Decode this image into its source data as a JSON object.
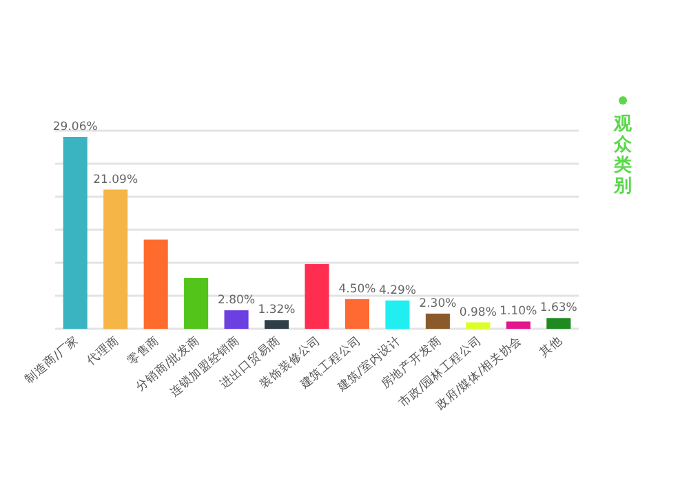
{
  "chart_data": {
    "type": "bar",
    "categories": [
      "制造商/厂家",
      "代理商",
      "零售商",
      "分销商/批发商",
      "连锁加盟经销商",
      "进出口贸易商",
      "装饰装修公司",
      "建筑工程公司",
      "建筑/室内设计",
      "房地产开发商",
      "市政/园林工程公司",
      "政府/媒体/相关协会",
      "其他"
    ],
    "series": [
      {
        "name": "观众类别",
        "color": "#5ad84a",
        "values": [
          29.06,
          21.09,
          13.5,
          7.7,
          2.8,
          1.32,
          9.8,
          4.5,
          4.29,
          2.3,
          0.98,
          1.1,
          1.63
        ],
        "colors": [
          "#3bb4c1",
          "#f5b547",
          "#ff6b2c",
          "#52c41a",
          "#6b3fe0",
          "#2f3f47",
          "#ff2d4f",
          "#ff6a33",
          "#21eef0",
          "#8b5a2b",
          "#dcff2a",
          "#e3168c",
          "#1f8a1f"
        ],
        "value_labels": [
          "29.06%",
          "21.09%",
          null,
          null,
          "2.80%",
          "1.32%",
          null,
          "4.50%",
          "4.29%",
          "2.30%",
          "0.98%",
          "1.10%",
          "1.63%"
        ]
      }
    ],
    "ylim": [
      0,
      30
    ],
    "yticks": [
      {
        "value": 0,
        "label": null
      },
      {
        "value": 5,
        "label": null
      },
      {
        "value": 10,
        "label": null
      },
      {
        "value": 15,
        "label": null
      },
      {
        "value": 20,
        "label": null
      },
      {
        "value": 25,
        "label": null
      },
      {
        "value": 30,
        "label": null
      }
    ],
    "grid": "y",
    "legend": "right",
    "tick_labels": "x"
  }
}
